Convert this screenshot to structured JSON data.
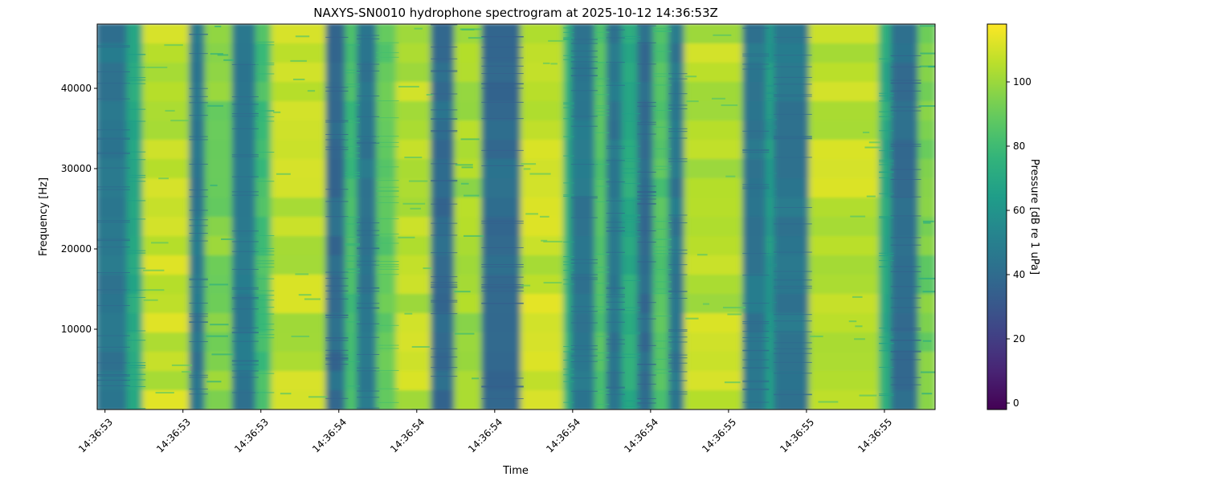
{
  "chart_data": {
    "type": "heatmap",
    "title": "NAXYS-SN0010 hydrophone spectrogram at 2025-10-12 14:36:53Z",
    "xlabel": "Time",
    "ylabel": "Frequency [Hz]",
    "colorbar_label": "Pressure [dB re 1 uPa]",
    "colormap": "viridis",
    "x_unit": "seconds past 14:36",
    "xlim": [
      53.38,
      55.53
    ],
    "ylim": [
      0,
      48000
    ],
    "clim": [
      -2,
      118
    ],
    "x_ticks": [
      53.4,
      53.6,
      53.8,
      54.0,
      54.2,
      54.4,
      54.6,
      54.8,
      55.0,
      55.2,
      55.4
    ],
    "x_tick_labels": [
      "14:36:53",
      "14:36:53",
      "14:36:53",
      "14:36:54",
      "14:36:54",
      "14:36:54",
      "14:36:54",
      "14:36:54",
      "14:36:55",
      "14:36:55",
      "14:36:55"
    ],
    "y_ticks": [
      10000,
      20000,
      30000,
      40000
    ],
    "y_tick_labels": [
      "10000",
      "20000",
      "30000",
      "40000"
    ],
    "colorbar_ticks": [
      0,
      20,
      40,
      60,
      80,
      100
    ],
    "colorbar_tick_labels": [
      "0",
      "20",
      "40",
      "60",
      "80",
      "100"
    ],
    "grid": false,
    "segments_db": [
      [
        53.38,
        53.46,
        45
      ],
      [
        53.46,
        53.5,
        70
      ],
      [
        53.5,
        53.62,
        108
      ],
      [
        53.62,
        53.66,
        45
      ],
      [
        53.66,
        53.73,
        95
      ],
      [
        53.73,
        53.79,
        45
      ],
      [
        53.79,
        53.83,
        82
      ],
      [
        53.83,
        53.97,
        106
      ],
      [
        53.97,
        54.02,
        40
      ],
      [
        54.02,
        54.05,
        82
      ],
      [
        54.05,
        54.1,
        45
      ],
      [
        54.1,
        54.15,
        88
      ],
      [
        54.15,
        54.24,
        106
      ],
      [
        54.24,
        54.3,
        40
      ],
      [
        54.3,
        54.37,
        100
      ],
      [
        54.37,
        54.47,
        40
      ],
      [
        54.47,
        54.58,
        108
      ],
      [
        54.58,
        54.6,
        75
      ],
      [
        54.6,
        54.66,
        45
      ],
      [
        54.66,
        54.69,
        85
      ],
      [
        54.69,
        54.73,
        45
      ],
      [
        54.73,
        54.77,
        72
      ],
      [
        54.77,
        54.81,
        40
      ],
      [
        54.81,
        54.85,
        85
      ],
      [
        54.85,
        54.89,
        45
      ],
      [
        54.89,
        55.04,
        106
      ],
      [
        55.04,
        55.1,
        45
      ],
      [
        55.1,
        55.12,
        65
      ],
      [
        55.12,
        55.21,
        45
      ],
      [
        55.21,
        55.39,
        106
      ],
      [
        55.39,
        55.42,
        72
      ],
      [
        55.42,
        55.49,
        40
      ],
      [
        55.49,
        55.53,
        92
      ]
    ]
  }
}
